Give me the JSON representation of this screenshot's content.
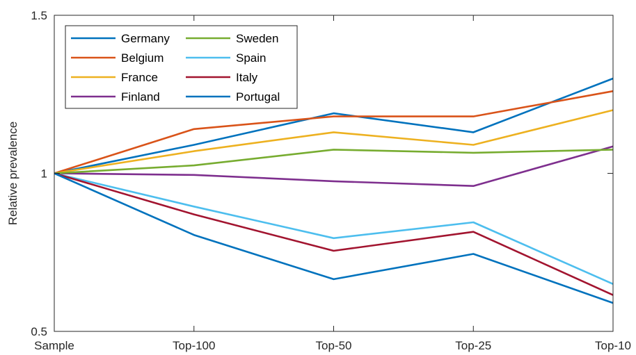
{
  "chart_data": {
    "type": "line",
    "xlabel": "",
    "ylabel": "Relative prevalence",
    "categories": [
      "Sample",
      "Top-100",
      "Top-50",
      "Top-25",
      "Top-10"
    ],
    "ylim": [
      0.5,
      1.5
    ],
    "yticks": [
      0.5,
      1,
      1.5
    ],
    "ytick_labels": [
      "0.5",
      "1",
      "1.5"
    ],
    "grid": false,
    "legend_placement": "top-left",
    "series": [
      {
        "name": "Germany",
        "color": "#0072BD",
        "values": [
          1.0,
          1.09,
          1.19,
          1.13,
          1.3
        ]
      },
      {
        "name": "Belgium",
        "color": "#D95319",
        "values": [
          1.0,
          1.14,
          1.18,
          1.18,
          1.26
        ]
      },
      {
        "name": "France",
        "color": "#EDB120",
        "values": [
          1.0,
          1.07,
          1.13,
          1.09,
          1.2
        ]
      },
      {
        "name": "Finland",
        "color": "#7E2F8E",
        "values": [
          1.0,
          0.995,
          0.975,
          0.96,
          1.085
        ]
      },
      {
        "name": "Sweden",
        "color": "#77AC30",
        "values": [
          1.0,
          1.025,
          1.075,
          1.065,
          1.075
        ]
      },
      {
        "name": "Spain",
        "color": "#4DBEEE",
        "values": [
          1.0,
          0.895,
          0.795,
          0.845,
          0.65
        ]
      },
      {
        "name": "Italy",
        "color": "#A2142F",
        "values": [
          1.0,
          0.87,
          0.755,
          0.815,
          0.615
        ]
      },
      {
        "name": "Portugal",
        "color": "#0072BD",
        "values": [
          1.0,
          0.805,
          0.665,
          0.745,
          0.59
        ]
      }
    ]
  }
}
